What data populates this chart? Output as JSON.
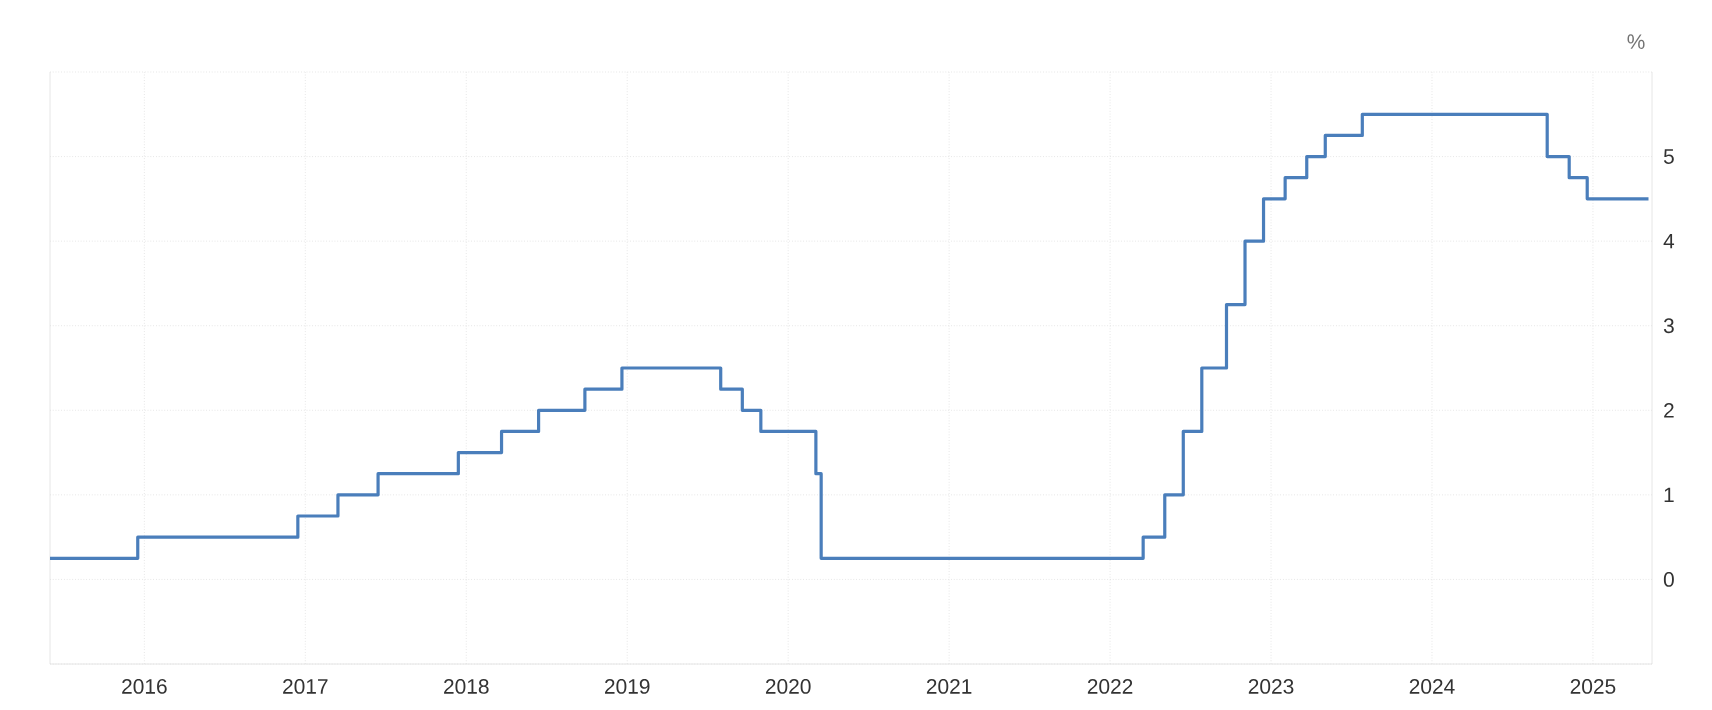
{
  "chart_data": {
    "type": "step",
    "ylabel": "%",
    "x": [
      "2015-06-01",
      "2015-12-17",
      "2016-12-15",
      "2017-03-16",
      "2017-06-15",
      "2017-12-14",
      "2018-03-22",
      "2018-06-14",
      "2018-09-27",
      "2018-12-20",
      "2019-08-01",
      "2019-09-19",
      "2019-10-31",
      "2020-03-04",
      "2020-03-16",
      "2022-03-17",
      "2022-05-05",
      "2022-06-16",
      "2022-07-28",
      "2022-09-22",
      "2022-11-03",
      "2022-12-15",
      "2023-02-02",
      "2023-03-23",
      "2023-05-04",
      "2023-07-27",
      "2024-09-19",
      "2024-11-08",
      "2024-12-19",
      "2025-05-07"
    ],
    "series": [
      {
        "color": "#4a7ebb",
        "values": [
          0.25,
          0.5,
          0.75,
          1.0,
          1.25,
          1.5,
          1.75,
          2.0,
          2.25,
          2.5,
          2.25,
          2.0,
          1.75,
          1.25,
          0.25,
          0.5,
          1.0,
          1.75,
          2.5,
          3.25,
          4.0,
          4.5,
          4.75,
          5.0,
          5.25,
          5.5,
          5.0,
          4.75,
          4.5,
          4.5
        ]
      }
    ],
    "xlim": [
      "2015-06-01",
      "2025-05-15"
    ],
    "xticks": [
      {
        "value": "2016",
        "label": "2016"
      },
      {
        "value": "2017",
        "label": "2017"
      },
      {
        "value": "2018",
        "label": "2018"
      },
      {
        "value": "2019",
        "label": "2019"
      },
      {
        "value": "2020",
        "label": "2020"
      },
      {
        "value": "2021",
        "label": "2021"
      },
      {
        "value": "2022",
        "label": "2022"
      },
      {
        "value": "2023",
        "label": "2023"
      },
      {
        "value": "2024",
        "label": "2024"
      },
      {
        "value": "2025",
        "label": "2025"
      }
    ],
    "ylim": [
      -1,
      6
    ],
    "yticks": [
      {
        "value": -1,
        "label": null
      },
      0,
      1,
      2,
      3,
      4,
      5,
      {
        "value": 6,
        "label": null
      }
    ],
    "grid": true,
    "legend": false,
    "marker": "none",
    "line_style": "solid"
  }
}
